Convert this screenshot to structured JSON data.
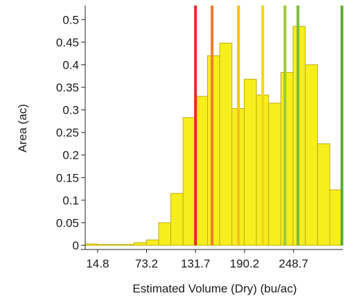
{
  "chart_data": {
    "type": "bar",
    "title": "",
    "xlabel": "Estimated Volume (Dry) (bu/ac)",
    "ylabel": "Area (ac)",
    "x_range": [
      0,
      307.7
    ],
    "ylim": [
      0,
      0.525
    ],
    "x_ticks": [
      14.8,
      73.2,
      131.7,
      190.2,
      248.7
    ],
    "y_ticks": [
      0,
      0.05,
      0.1,
      0.15,
      0.2,
      0.25,
      0.3,
      0.35,
      0.4,
      0.45,
      0.5
    ],
    "y_tick_labels": [
      "0",
      "0.05",
      "0.1",
      "0.15",
      "0.2",
      "0.25",
      "0.3",
      "0.35",
      "0.4",
      "0.45",
      "0.5"
    ],
    "bin_width": 14.6,
    "bins": [
      {
        "start": 0.0,
        "value": 0.003
      },
      {
        "start": 14.6,
        "value": 0.002
      },
      {
        "start": 29.2,
        "value": 0.002
      },
      {
        "start": 43.8,
        "value": 0.002
      },
      {
        "start": 58.4,
        "value": 0.006
      },
      {
        "start": 73.0,
        "value": 0.012
      },
      {
        "start": 87.6,
        "value": 0.05
      },
      {
        "start": 102.2,
        "value": 0.115
      },
      {
        "start": 116.8,
        "value": 0.283
      },
      {
        "start": 131.4,
        "value": 0.33
      },
      {
        "start": 146.0,
        "value": 0.42
      },
      {
        "start": 160.6,
        "value": 0.448
      },
      {
        "start": 175.2,
        "value": 0.303
      },
      {
        "start": 189.8,
        "value": 0.368
      },
      {
        "start": 204.4,
        "value": 0.333
      },
      {
        "start": 219.0,
        "value": 0.315
      },
      {
        "start": 233.6,
        "value": 0.383
      },
      {
        "start": 248.2,
        "value": 0.485
      },
      {
        "start": 262.8,
        "value": 0.4
      },
      {
        "start": 277.4,
        "value": 0.225
      },
      {
        "start": 292.0,
        "value": 0.123
      }
    ],
    "reference_lines": [
      {
        "x": 131.7,
        "color": "#e8262a"
      },
      {
        "x": 151.5,
        "color": "#f07c28"
      },
      {
        "x": 183.0,
        "color": "#f2c21a"
      },
      {
        "x": 212.0,
        "color": "#f2d51a"
      },
      {
        "x": 238.5,
        "color": "#9cc83a"
      },
      {
        "x": 254.0,
        "color": "#7dbb3c"
      },
      {
        "x": 306.5,
        "color": "#5aaa32"
      }
    ],
    "bar_fill": "#f7ee1e",
    "bar_stroke": "#bfae12",
    "grid": false,
    "legend": "none"
  }
}
